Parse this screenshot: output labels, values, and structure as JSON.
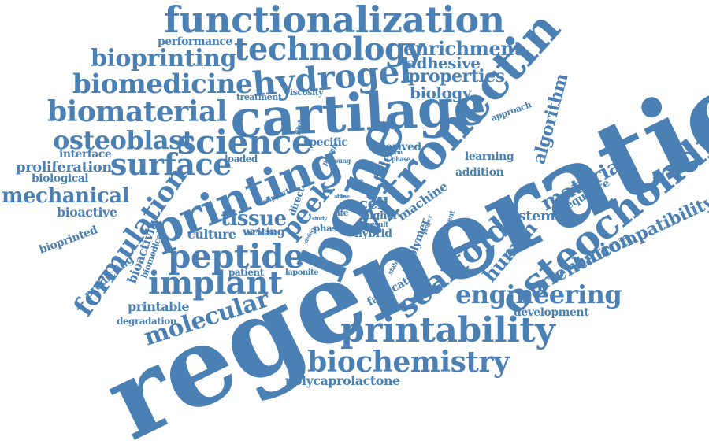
{
  "colors": {
    "word": "#4a80b4",
    "background": "#ffffff"
  },
  "words": [
    "regeneration",
    "bone",
    "vitronectin",
    "osteochondral",
    "cartilage",
    "printing",
    "functionalization",
    "technology",
    "hydrogel",
    "biomaterial",
    "biomedicine",
    "bioprinting",
    "science",
    "osteoblast",
    "surface",
    "peptide",
    "implant",
    "formulation",
    "printability",
    "biochemistry",
    "engineering",
    "scaffold",
    "molecular",
    "tissue",
    "mechanical",
    "peek",
    "enrichment",
    "adhesive",
    "properties",
    "biology",
    "algorithm",
    "material",
    "human",
    "orientation",
    "biocompatibility",
    "system",
    "sequence",
    "learning",
    "addition",
    "machine",
    "filler",
    "cell",
    "derived",
    "specific",
    "loaded",
    "performance",
    "viscosity",
    "treatment",
    "proliferation",
    "biological",
    "interface",
    "bioactive",
    "bioprinted",
    "bioactivity",
    "predicting",
    "biomedical",
    "culture",
    "writing",
    "increase",
    "direct",
    "patient",
    "laponite",
    "printable",
    "degradation",
    "fabrication",
    "polymer",
    "hybrid",
    "phasic",
    "higher",
    "life",
    "result",
    "polycaprolactone",
    "development",
    "approach",
    "support",
    "film",
    "highest",
    "porous",
    "young",
    "more",
    "able",
    "short",
    "phase",
    "study",
    "defect",
    "stability",
    "filament",
    "project",
    "term",
    "time"
  ]
}
